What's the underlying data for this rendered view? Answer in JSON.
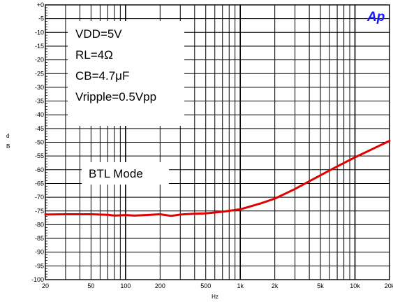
{
  "chart_data": {
    "type": "line",
    "title": "",
    "xlabel": "Hz",
    "ylabel": "dB",
    "x_scale": "log",
    "xlim": [
      20,
      20000
    ],
    "ylim": [
      -100,
      0
    ],
    "grid": true,
    "x_tick_labels": [
      {
        "value": 20,
        "label": "20"
      },
      {
        "value": 50,
        "label": "50"
      },
      {
        "value": 100,
        "label": "100"
      },
      {
        "value": 200,
        "label": "200"
      },
      {
        "value": 500,
        "label": "500"
      },
      {
        "value": 1000,
        "label": "1k"
      },
      {
        "value": 2000,
        "label": "2k"
      },
      {
        "value": 5000,
        "label": "5k"
      },
      {
        "value": 10000,
        "label": "10k"
      },
      {
        "value": 20000,
        "label": "20k"
      }
    ],
    "y_tick_labels": [
      {
        "value": 0,
        "label": "+0"
      },
      {
        "value": -5,
        "label": "-5"
      },
      {
        "value": -10,
        "label": "-10"
      },
      {
        "value": -15,
        "label": "-15"
      },
      {
        "value": -20,
        "label": "-20"
      },
      {
        "value": -25,
        "label": "-25"
      },
      {
        "value": -30,
        "label": "-30"
      },
      {
        "value": -35,
        "label": "-35"
      },
      {
        "value": -40,
        "label": "-40"
      },
      {
        "value": -45,
        "label": "-45"
      },
      {
        "value": -50,
        "label": "-50"
      },
      {
        "value": -55,
        "label": "-55"
      },
      {
        "value": -60,
        "label": "-60"
      },
      {
        "value": -65,
        "label": "-65"
      },
      {
        "value": -70,
        "label": "-70"
      },
      {
        "value": -75,
        "label": "-75"
      },
      {
        "value": -80,
        "label": "-80"
      },
      {
        "value": -85,
        "label": "-85"
      },
      {
        "value": -90,
        "label": "-90"
      },
      {
        "value": -95,
        "label": "-95"
      },
      {
        "value": -100,
        "label": "-100"
      }
    ],
    "series": [
      {
        "color": "#e00000",
        "x": [
          20,
          30,
          50,
          70,
          80,
          100,
          120,
          150,
          200,
          250,
          300,
          400,
          500,
          700,
          1000,
          1500,
          2000,
          3000,
          5000,
          7000,
          10000,
          14000,
          20000
        ],
        "y": [
          -76.3,
          -76.2,
          -76.2,
          -76.4,
          -76.7,
          -76.5,
          -76.7,
          -76.5,
          -76.2,
          -76.8,
          -76.3,
          -76.0,
          -75.9,
          -75.3,
          -74.4,
          -72.3,
          -70.5,
          -67.0,
          -62.0,
          -58.8,
          -55.5,
          -52.6,
          -49.5
        ]
      }
    ],
    "annotations": {
      "vdd": "VDD=5V",
      "rl": "RL=4Ω",
      "cb": "CB=4.7μF",
      "vripple": "Vripple=0.5Vpp",
      "mode": "BTL Mode"
    },
    "logo": "Ap"
  }
}
